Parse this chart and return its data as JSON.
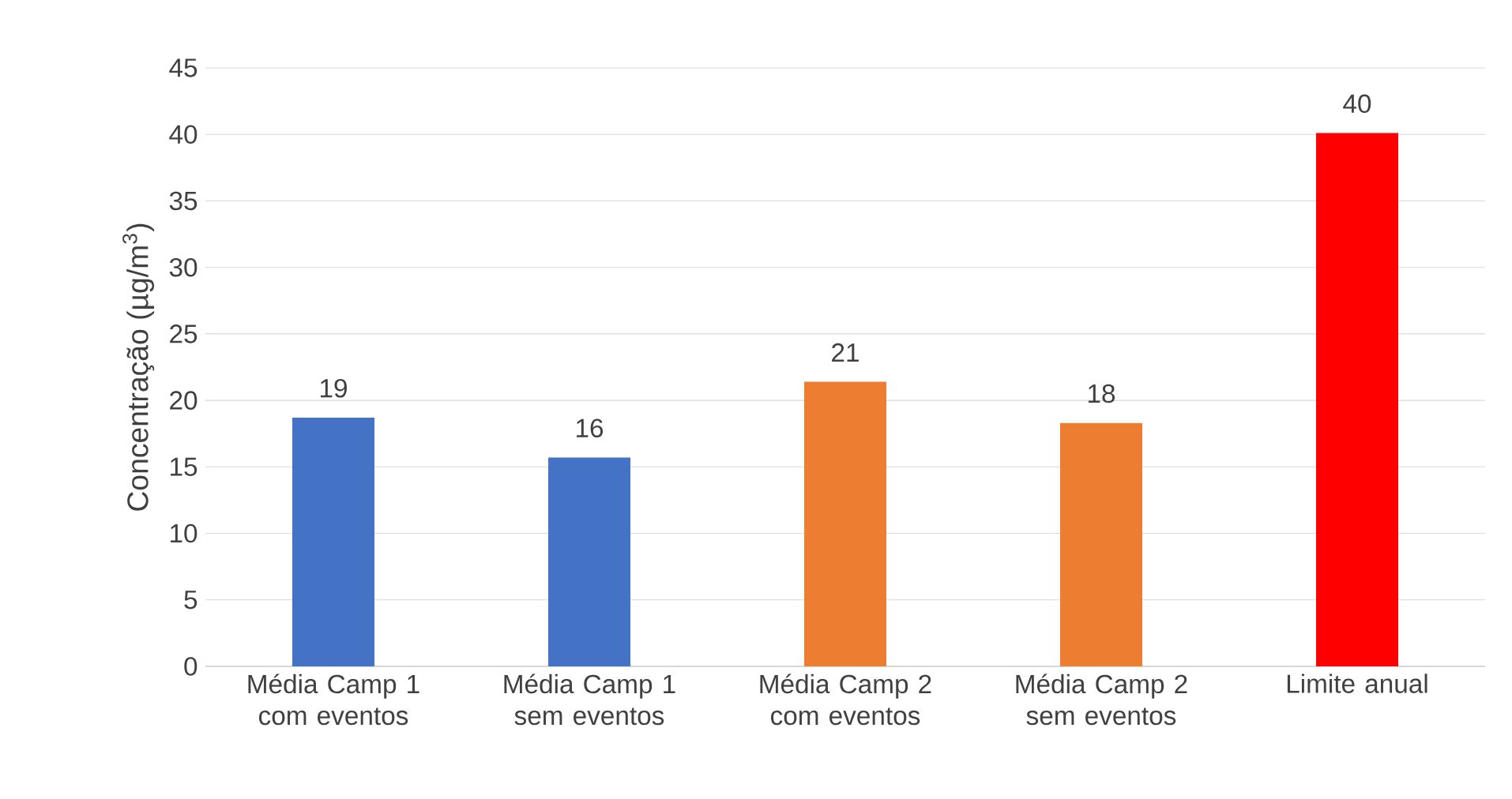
{
  "chart_data": {
    "type": "bar",
    "ylabel": "Concentração (µg/m$^{3}$)",
    "categories": [
      "Média Camp 1 com eventos",
      "Média Camp 1 sem eventos",
      "Média Camp 2 com eventos",
      "Média Camp 2 sem eventos",
      "Limite anual"
    ],
    "values": [
      18.7,
      15.7,
      21.4,
      18.3,
      40.1
    ],
    "colors": [
      "#4472c4",
      "#4472c4",
      "#ed7d31",
      "#ed7d31",
      "#ff0000"
    ],
    "value_labels": [
      "19",
      "16",
      "21",
      "18",
      "40"
    ],
    "ylim": [
      0,
      45
    ],
    "yticks": [
      0,
      5,
      10,
      15,
      20,
      25,
      30,
      35,
      40,
      45
    ],
    "grid": "y"
  }
}
